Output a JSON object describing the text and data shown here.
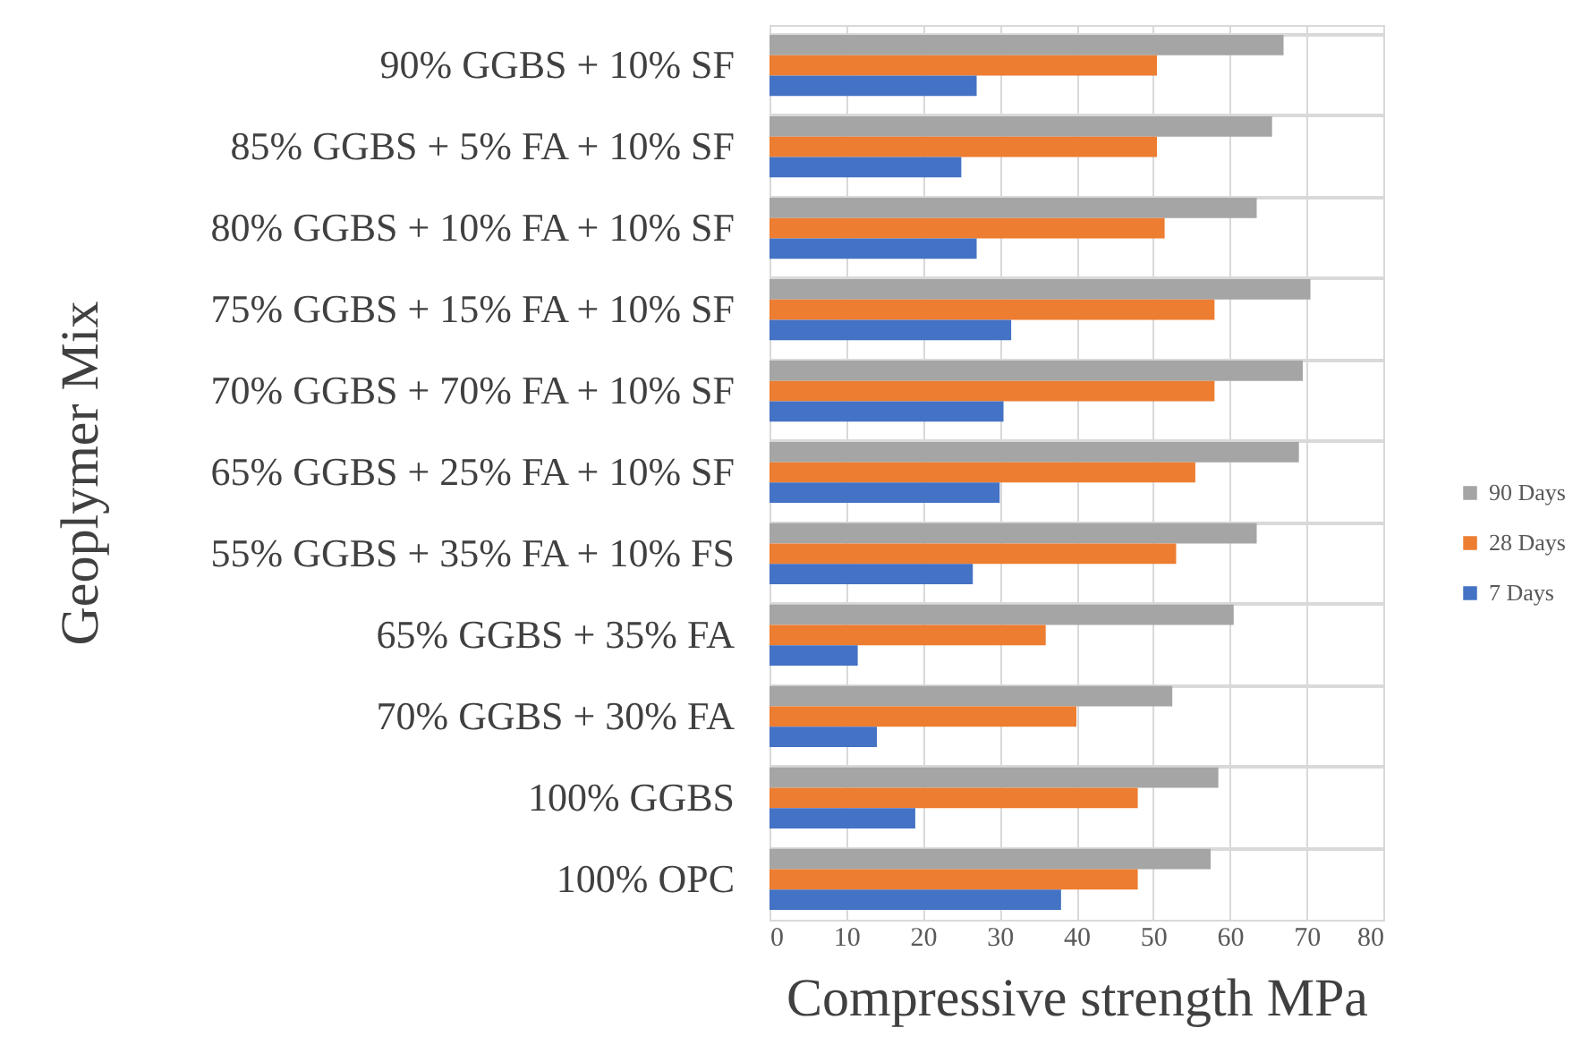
{
  "chart_data": {
    "type": "bar",
    "orientation": "horizontal",
    "xlabel": "Compressive strength MPa",
    "ylabel": "Geoplymer Mix",
    "categories": [
      "90% GGBS + 10% SF",
      "85% GGBS + 5% FA + 10% SF",
      "80% GGBS + 10% FA + 10% SF",
      "75% GGBS + 15% FA + 10% SF",
      "70% GGBS + 70% FA + 10% SF",
      "65% GGBS + 25% FA + 10% SF",
      "55% GGBS + 35% FA + 10% FS",
      "65% GGBS + 35% FA",
      "70% GGBS + 30% FA",
      "100% GGBS",
      "100% OPC"
    ],
    "series": [
      {
        "name": "90 Days",
        "color": "#a5a5a5",
        "values": [
          67,
          65.5,
          63.5,
          70.5,
          69.5,
          69,
          63.5,
          60.5,
          52.5,
          58.5,
          57.5
        ]
      },
      {
        "name": "28 Days",
        "color": "#ed7d31",
        "values": [
          50.5,
          50.5,
          51.5,
          58,
          58,
          55.5,
          53,
          36,
          40,
          48,
          48
        ]
      },
      {
        "name": "7 Days",
        "color": "#4472c4",
        "values": [
          27,
          25,
          27,
          31.5,
          30.5,
          30,
          26.5,
          11.5,
          14,
          19,
          38
        ]
      }
    ],
    "xlim": [
      0,
      80
    ],
    "xticks": [
      0,
      10,
      20,
      30,
      40,
      50,
      60,
      70,
      80
    ],
    "grid": true,
    "legend": "right"
  }
}
